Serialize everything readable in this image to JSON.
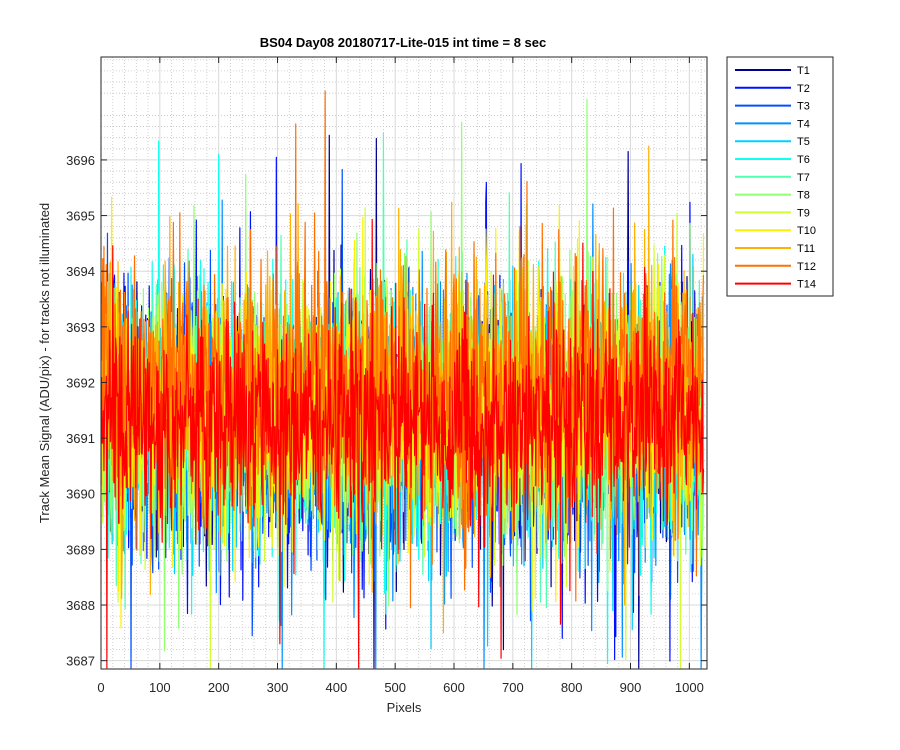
{
  "chart_data": {
    "type": "line",
    "title": "BS04 Day08 20180717-Lite-015 int time = 8 sec",
    "xlabel": "Pixels",
    "ylabel": "Track Mean Signal (ADU/pix) - for tracks not illuminated",
    "xlim": [
      0,
      1030
    ],
    "ylim": [
      3686.85,
      3697.85
    ],
    "x_ticks": [
      0,
      100,
      200,
      300,
      400,
      500,
      600,
      700,
      800,
      900,
      1000
    ],
    "y_ticks": [
      3687,
      3688,
      3689,
      3690,
      3691,
      3692,
      3693,
      3694,
      3695,
      3696
    ],
    "grid": true,
    "minor_grid": true,
    "legend_position": "outside-right",
    "n_points_per_series": 1024,
    "x_start": 1,
    "x_step": 1,
    "series": [
      {
        "name": "T1",
        "color": "#00008f",
        "mean": 3691.3,
        "spread": 1.05,
        "outlier_rate": 0.02,
        "seed": 11
      },
      {
        "name": "T2",
        "color": "#0010ff",
        "mean": 3691.2,
        "spread": 1.05,
        "outlier_rate": 0.02,
        "seed": 23
      },
      {
        "name": "T3",
        "color": "#0050ff",
        "mean": 3691.2,
        "spread": 1.05,
        "outlier_rate": 0.02,
        "seed": 37
      },
      {
        "name": "T4",
        "color": "#0090ff",
        "mean": 3691.2,
        "spread": 1.05,
        "outlier_rate": 0.02,
        "seed": 41
      },
      {
        "name": "T5",
        "color": "#00d0ff",
        "mean": 3691.2,
        "spread": 1.05,
        "outlier_rate": 0.02,
        "seed": 53
      },
      {
        "name": "T6",
        "color": "#10ffef",
        "mean": 3691.4,
        "spread": 1.05,
        "outlier_rate": 0.02,
        "seed": 67
      },
      {
        "name": "T7",
        "color": "#50ffaf",
        "mean": 3691.4,
        "spread": 1.05,
        "outlier_rate": 0.02,
        "seed": 71
      },
      {
        "name": "T8",
        "color": "#90ff70",
        "mean": 3691.5,
        "spread": 1.05,
        "outlier_rate": 0.02,
        "seed": 83
      },
      {
        "name": "T9",
        "color": "#cfff30",
        "mean": 3691.5,
        "spread": 1.05,
        "outlier_rate": 0.02,
        "seed": 97
      },
      {
        "name": "T10",
        "color": "#ffef00",
        "mean": 3691.6,
        "spread": 1.05,
        "outlier_rate": 0.02,
        "seed": 101
      },
      {
        "name": "T11",
        "color": "#ffb000",
        "mean": 3691.8,
        "spread": 1.05,
        "outlier_rate": 0.02,
        "seed": 113
      },
      {
        "name": "T12",
        "color": "#ff7000",
        "mean": 3691.9,
        "spread": 1.05,
        "outlier_rate": 0.02,
        "seed": 127
      },
      {
        "name": "T14",
        "color": "#ff0000",
        "mean": 3691.3,
        "spread": 0.95,
        "outlier_rate": 0.02,
        "seed": 131
      }
    ]
  }
}
